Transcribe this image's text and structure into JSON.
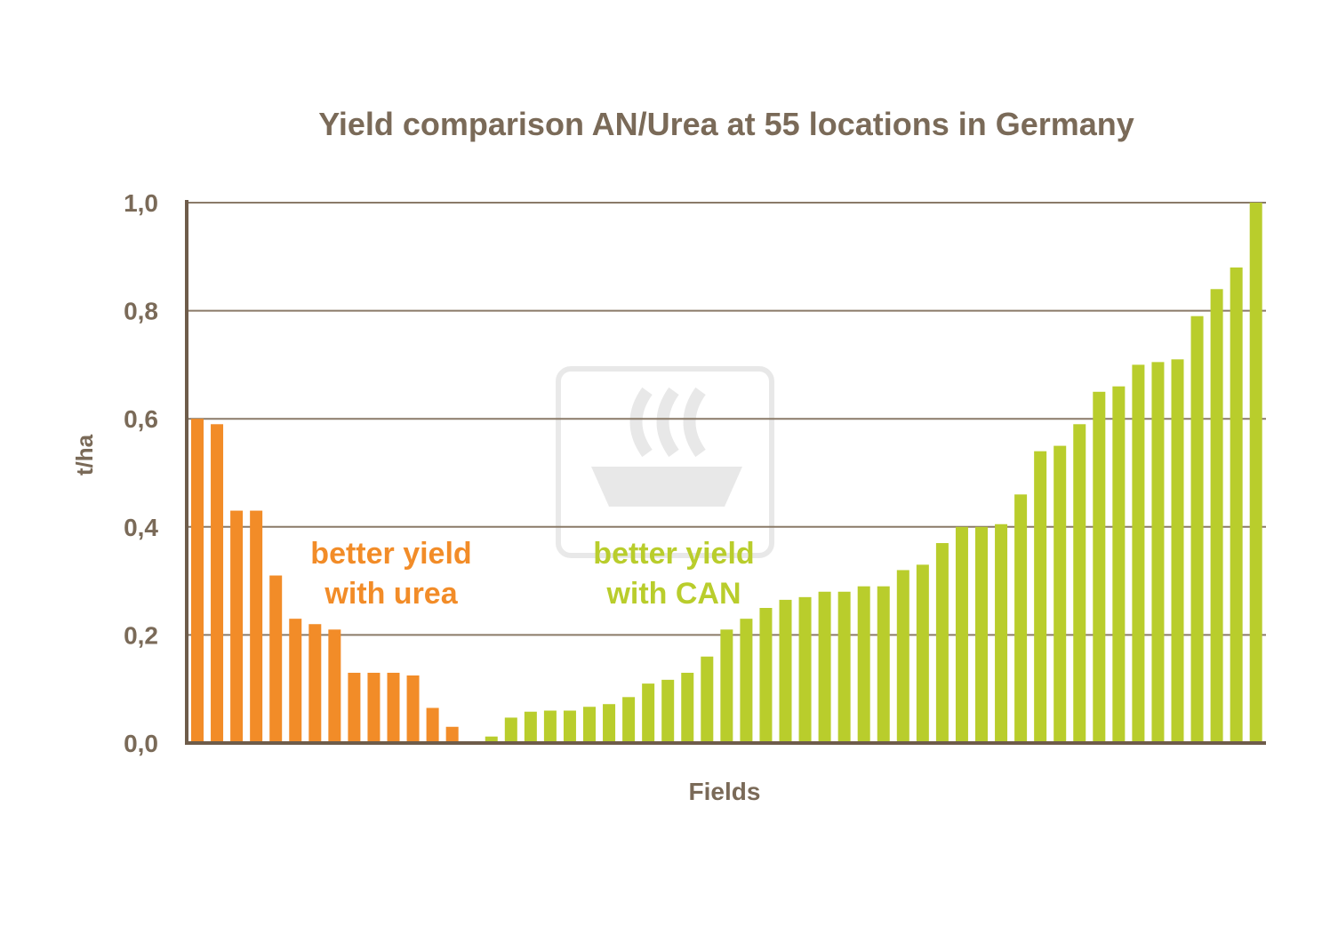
{
  "chart_data": {
    "type": "bar",
    "title": "Yield comparison AN/Urea at 55 locations in Germany",
    "xlabel": "Fields",
    "ylabel": "t/ha",
    "ylim": [
      0,
      1.0
    ],
    "yticks": [
      0.0,
      0.2,
      0.4,
      0.6,
      0.8,
      1.0
    ],
    "ytick_labels": [
      "0,0",
      "0,2",
      "0,4",
      "0,6",
      "0,8",
      "1,0"
    ],
    "grid": true,
    "series": [
      {
        "name": "better yield with urea",
        "color": "#f28c28",
        "values": [
          0.6,
          0.59,
          0.43,
          0.43,
          0.31,
          0.23,
          0.22,
          0.21,
          0.13,
          0.13,
          0.13,
          0.125,
          0.065,
          0.03,
          0.003
        ]
      },
      {
        "name": "better yield with CAN",
        "color": "#b9cd2c",
        "values": [
          0.012,
          0.047,
          0.058,
          0.06,
          0.06,
          0.067,
          0.072,
          0.085,
          0.11,
          0.117,
          0.13,
          0.16,
          0.21,
          0.23,
          0.25,
          0.265,
          0.27,
          0.28,
          0.28,
          0.29,
          0.29,
          0.32,
          0.33,
          0.37,
          0.4,
          0.4,
          0.405,
          0.46,
          0.54,
          0.55,
          0.59,
          0.65,
          0.66,
          0.7,
          0.705,
          0.71,
          0.79,
          0.84,
          0.88,
          1.0
        ]
      }
    ],
    "annotations": [
      {
        "lines": [
          "better yield",
          "with urea"
        ],
        "color": "#f28c28"
      },
      {
        "lines": [
          "better yield",
          "with CAN"
        ],
        "color": "#b9cd2c"
      }
    ]
  }
}
